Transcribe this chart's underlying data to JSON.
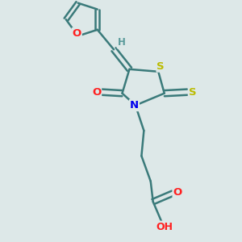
{
  "background_color": "#dde8e8",
  "atom_colors": {
    "C": "#3a7a7a",
    "H": "#5a9a9a",
    "O": "#ff2020",
    "N": "#0000ee",
    "S": "#bbbb00"
  },
  "bond_color": "#3a7a7a",
  "bond_width": 1.8,
  "figsize": [
    3.0,
    3.0
  ],
  "dpi": 100,
  "xlim": [
    0,
    10
  ],
  "ylim": [
    0,
    10
  ]
}
